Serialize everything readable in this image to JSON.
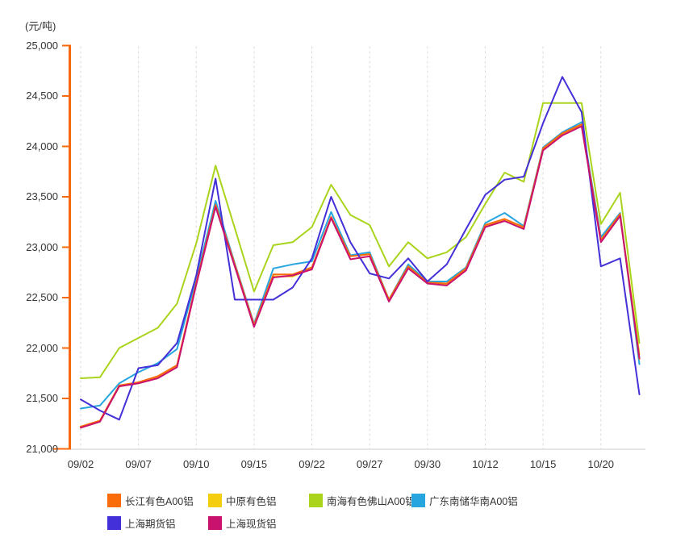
{
  "chart_data": {
    "type": "line",
    "unit_label": "(元/吨)",
    "ylabel": "(元/吨)",
    "ylim": [
      21000,
      25000
    ],
    "y_tick_step": 500,
    "y_tick_labels": [
      "25,000",
      "24,500",
      "24,000",
      "23,500",
      "23,000",
      "22,500",
      "22,000",
      "21,500",
      "21,000"
    ],
    "x_tick_labels": [
      "09/02",
      "09/07",
      "09/10",
      "09/15",
      "09/22",
      "09/27",
      "09/30",
      "10/12",
      "10/15",
      "10/20"
    ],
    "x_tick_indices": [
      0,
      3,
      6,
      9,
      12,
      15,
      18,
      21,
      24,
      27
    ],
    "n_points": 30,
    "grid": "vertical-dashed",
    "legend_position": "bottom",
    "axis_colors": {
      "y_axis": "#F8690B",
      "x_axis": "#CCCCCC",
      "gridline": "#DDDDDD"
    },
    "series": [
      {
        "name": "长江有色A00铝",
        "color": "#FA6B0A",
        "values": [
          21220,
          21280,
          21630,
          21660,
          21720,
          21830,
          22650,
          23420,
          22830,
          22230,
          22730,
          22730,
          22800,
          23300,
          22910,
          22930,
          22480,
          22810,
          22650,
          22640,
          22790,
          23220,
          23280,
          23200,
          23980,
          24130,
          24220,
          23070,
          23330,
          21890
        ]
      },
      {
        "name": "中原有色铝",
        "color": "#F4CE0E",
        "values": [
          21210,
          21270,
          21620,
          21650,
          21710,
          21820,
          22640,
          23410,
          22820,
          22220,
          22710,
          22710,
          22790,
          23290,
          22920,
          22940,
          22470,
          22800,
          22640,
          22630,
          22780,
          23210,
          23270,
          23190,
          23970,
          24120,
          24210,
          23090,
          23320,
          21940
        ]
      },
      {
        "name": "南海有色佛山A00铝",
        "color": "#AAD41C",
        "values": [
          21700,
          21710,
          22000,
          22100,
          22200,
          22440,
          23040,
          23810,
          23190,
          22560,
          23020,
          23050,
          23200,
          23620,
          23320,
          23220,
          22810,
          23050,
          22890,
          22950,
          23100,
          23430,
          23740,
          23650,
          24430,
          24430,
          24430,
          23230,
          23540,
          22050
        ]
      },
      {
        "name": "广东南储华南A00铝",
        "color": "#27A5DE",
        "values": [
          21400,
          21430,
          21650,
          21760,
          21850,
          21990,
          22690,
          23460,
          22840,
          22240,
          22790,
          22830,
          22860,
          23350,
          22920,
          22950,
          22480,
          22830,
          22660,
          22660,
          22800,
          23240,
          23340,
          23210,
          23990,
          24140,
          24240,
          23100,
          23340,
          21840
        ]
      },
      {
        "name": "上海期货铝",
        "color": "#4430D8",
        "values": [
          21490,
          21380,
          21290,
          21800,
          21830,
          22050,
          22720,
          23680,
          22480,
          22480,
          22480,
          22600,
          22890,
          23500,
          23050,
          22740,
          22690,
          22890,
          22660,
          22830,
          23180,
          23520,
          23670,
          23700,
          24230,
          24690,
          24340,
          22810,
          22890,
          21540
        ]
      },
      {
        "name": "上海现货铝",
        "color": "#C9116E",
        "values": [
          21210,
          21270,
          21620,
          21650,
          21700,
          21810,
          22630,
          23400,
          22810,
          22210,
          22700,
          22720,
          22780,
          23290,
          22880,
          22910,
          22460,
          22790,
          22640,
          22620,
          22770,
          23200,
          23260,
          23180,
          23960,
          24110,
          24200,
          23050,
          23310,
          21900
        ]
      }
    ]
  }
}
